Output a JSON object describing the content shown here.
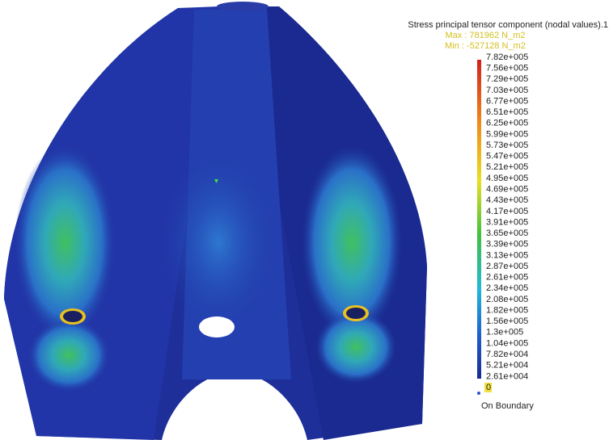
{
  "legend": {
    "title": "Stress principal tensor component (nodal values).1",
    "max": "Max : 781962 N_m2",
    "min": "Min : -527128 N_m2",
    "ticks": [
      "7.82e+005",
      "7.56e+005",
      "7.29e+005",
      "7.03e+005",
      "6.77e+005",
      "6.51e+005",
      "6.25e+005",
      "5.99e+005",
      "5.73e+005",
      "5.47e+005",
      "5.21e+005",
      "4.95e+005",
      "4.69e+005",
      "4.43e+005",
      "4.17e+005",
      "3.91e+005",
      "3.65e+005",
      "3.39e+005",
      "3.13e+005",
      "2.87e+005",
      "2.61e+005",
      "2.34e+005",
      "2.08e+005",
      "1.82e+005",
      "1.56e+005",
      "1.3e+005",
      "1.04e+005",
      "7.82e+004",
      "5.21e+004",
      "2.61e+004",
      "0"
    ],
    "boundary": "On Boundary"
  }
}
